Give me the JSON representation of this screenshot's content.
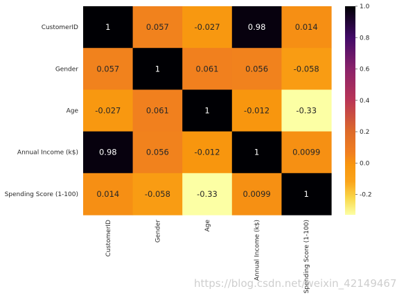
{
  "chart_data": {
    "type": "heatmap",
    "title": "",
    "xlabel": "",
    "ylabel": "",
    "rows": [
      "CustomerID",
      "Gender",
      "Age",
      "Annual Income (k$)",
      "Spending Score (1-100)"
    ],
    "columns": [
      "CustomerID",
      "Gender",
      "Age",
      "Annual Income (k$)",
      "Spending Score (1-100)"
    ],
    "values": [
      [
        1,
        0.057,
        -0.027,
        0.98,
        0.014
      ],
      [
        0.057,
        1,
        0.061,
        0.056,
        -0.058
      ],
      [
        -0.027,
        0.061,
        1,
        -0.012,
        -0.33
      ],
      [
        0.98,
        0.056,
        -0.012,
        1,
        0.0099
      ],
      [
        0.014,
        -0.058,
        -0.33,
        0.0099,
        1
      ]
    ],
    "labels": [
      [
        "1",
        "0.057",
        "-0.027",
        "0.98",
        "0.014"
      ],
      [
        "0.057",
        "1",
        "0.061",
        "0.056",
        "-0.058"
      ],
      [
        "-0.027",
        "0.061",
        "1",
        "-0.012",
        "-0.33"
      ],
      [
        "0.98",
        "0.056",
        "-0.012",
        "1",
        "0.0099"
      ],
      [
        "0.014",
        "-0.058",
        "-0.33",
        "0.0099",
        "1"
      ]
    ],
    "colormap": "inferno_r",
    "vmin": -0.33,
    "vmax": 1,
    "colorbar_ticks": [
      1.0,
      0.8,
      0.6,
      0.4,
      0.2,
      0.0,
      -0.2
    ],
    "colorbar_tick_labels": [
      "1.0",
      "0.8",
      "0.6",
      "0.4",
      "0.2",
      "0.0",
      "-0.2"
    ],
    "colorbar_placement": "right",
    "colormap_stops": [
      {
        "t": 0.0,
        "color": "#fcffa4"
      },
      {
        "t": 0.08,
        "color": "#f9d84a"
      },
      {
        "t": 0.16,
        "color": "#faa41a"
      },
      {
        "t": 0.24,
        "color": "#f8960e"
      },
      {
        "t": 0.3,
        "color": "#f07e20"
      },
      {
        "t": 0.4,
        "color": "#dd6a2a"
      },
      {
        "t": 0.55,
        "color": "#b93556"
      },
      {
        "t": 0.7,
        "color": "#8a226a"
      },
      {
        "t": 0.85,
        "color": "#420a68"
      },
      {
        "t": 1.0,
        "color": "#000004"
      }
    ]
  },
  "watermark": "https://blog.csdn.net/weixin_42149467"
}
